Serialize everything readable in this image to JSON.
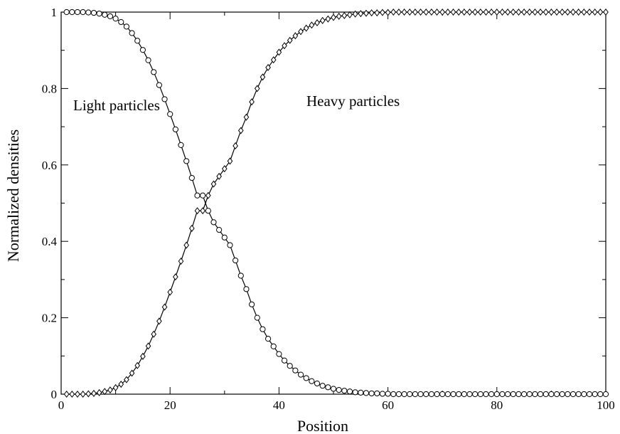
{
  "chart_data": {
    "type": "line",
    "title": "",
    "xlabel": "Position",
    "ylabel": "Normalized densities",
    "xlim": [
      0,
      100
    ],
    "ylim": [
      0,
      1
    ],
    "x_ticks": [
      {
        "value": 0,
        "label": "0"
      },
      {
        "value": 20,
        "label": "20"
      },
      {
        "value": 40,
        "label": "40"
      },
      {
        "value": 60,
        "label": "60"
      },
      {
        "value": 80,
        "label": "80"
      },
      {
        "value": 100,
        "label": "100"
      }
    ],
    "y_ticks": [
      {
        "value": 0,
        "label": "0"
      },
      {
        "value": 0.2,
        "label": "0.2"
      },
      {
        "value": 0.4,
        "label": "0.4"
      },
      {
        "value": 0.6,
        "label": "0.6"
      },
      {
        "value": 0.8,
        "label": "0.8"
      },
      {
        "value": 1,
        "label": "1"
      }
    ],
    "grid": false,
    "annotations": [
      {
        "text": "Light particles",
        "x": 2,
        "y": 0.755
      },
      {
        "text": "Heavy particles",
        "x": 45,
        "y": 0.76
      }
    ],
    "x": [
      1,
      2,
      3,
      4,
      5,
      6,
      7,
      8,
      9,
      10,
      11,
      12,
      13,
      14,
      15,
      16,
      17,
      18,
      19,
      20,
      21,
      22,
      23,
      24,
      25,
      26,
      27,
      28,
      29,
      30,
      31,
      32,
      33,
      34,
      35,
      36,
      37,
      38,
      39,
      40,
      41,
      42,
      43,
      44,
      45,
      46,
      47,
      48,
      49,
      50,
      51,
      52,
      53,
      54,
      55,
      56,
      57,
      58,
      59,
      60,
      61,
      62,
      63,
      64,
      65,
      66,
      67,
      68,
      69,
      70,
      71,
      72,
      73,
      74,
      75,
      76,
      77,
      78,
      79,
      80,
      81,
      82,
      83,
      84,
      85,
      86,
      87,
      88,
      89,
      90,
      91,
      92,
      93,
      94,
      95,
      96,
      97,
      98,
      99,
      100
    ],
    "series": [
      {
        "name": "Light particles",
        "marker": "circle",
        "values": [
          1,
          1,
          1,
          1,
          0.999,
          0.998,
          0.996,
          0.993,
          0.989,
          0.983,
          0.974,
          0.962,
          0.945,
          0.925,
          0.901,
          0.874,
          0.843,
          0.809,
          0.772,
          0.733,
          0.693,
          0.652,
          0.61,
          0.566,
          0.52,
          0.52,
          0.48,
          0.45,
          0.43,
          0.41,
          0.39,
          0.35,
          0.31,
          0.275,
          0.235,
          0.2,
          0.17,
          0.145,
          0.125,
          0.105,
          0.088,
          0.074,
          0.062,
          0.051,
          0.042,
          0.034,
          0.028,
          0.022,
          0.018,
          0.014,
          0.011,
          0.009,
          0.007,
          0.005,
          0.004,
          0.003,
          0.002,
          0.002,
          0.001,
          0.001,
          0,
          0,
          0,
          0,
          0,
          0,
          0,
          0,
          0,
          0,
          0,
          0,
          0,
          0,
          0,
          0,
          0,
          0,
          0,
          0,
          0,
          0,
          0,
          0,
          0,
          0,
          0,
          0,
          0,
          0,
          0,
          0,
          0,
          0,
          0,
          0,
          0,
          0,
          0,
          0
        ]
      },
      {
        "name": "Heavy particles",
        "marker": "diamond",
        "values": [
          0,
          0,
          0,
          0,
          0.001,
          0.002,
          0.004,
          0.007,
          0.011,
          0.017,
          0.026,
          0.038,
          0.055,
          0.075,
          0.099,
          0.126,
          0.157,
          0.191,
          0.228,
          0.267,
          0.307,
          0.348,
          0.39,
          0.434,
          0.48,
          0.48,
          0.52,
          0.55,
          0.57,
          0.59,
          0.61,
          0.65,
          0.69,
          0.725,
          0.765,
          0.8,
          0.83,
          0.855,
          0.875,
          0.895,
          0.912,
          0.926,
          0.938,
          0.949,
          0.958,
          0.966,
          0.972,
          0.978,
          0.982,
          0.986,
          0.989,
          0.991,
          0.993,
          0.995,
          0.996,
          0.997,
          0.998,
          0.998,
          0.999,
          0.999,
          1,
          1,
          1,
          1,
          1,
          1,
          1,
          1,
          1,
          1,
          1,
          1,
          1,
          1,
          1,
          1,
          1,
          1,
          1,
          1,
          1,
          1,
          1,
          1,
          1,
          1,
          1,
          1,
          1,
          1,
          1,
          1,
          1,
          1,
          1,
          1,
          1,
          1,
          1,
          1
        ]
      }
    ]
  }
}
